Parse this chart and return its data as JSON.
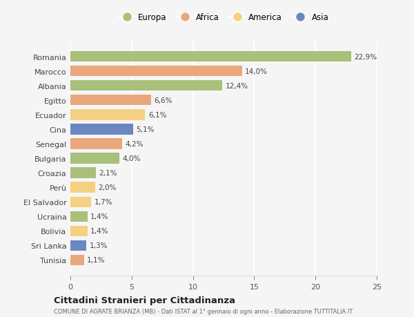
{
  "categories": [
    "Romania",
    "Marocco",
    "Albania",
    "Egitto",
    "Ecuador",
    "Cina",
    "Senegal",
    "Bulgaria",
    "Croazia",
    "Perù",
    "El Salvador",
    "Ucraina",
    "Bolivia",
    "Sri Lanka",
    "Tunisia"
  ],
  "values": [
    22.9,
    14.0,
    12.4,
    6.6,
    6.1,
    5.1,
    4.2,
    4.0,
    2.1,
    2.0,
    1.7,
    1.4,
    1.4,
    1.3,
    1.1
  ],
  "labels": [
    "22,9%",
    "14,0%",
    "12,4%",
    "6,6%",
    "6,1%",
    "5,1%",
    "4,2%",
    "4,0%",
    "2,1%",
    "2,0%",
    "1,7%",
    "1,4%",
    "1,4%",
    "1,3%",
    "1,1%"
  ],
  "continents": [
    "Europa",
    "Africa",
    "Europa",
    "Africa",
    "America",
    "Asia",
    "Africa",
    "Europa",
    "Europa",
    "America",
    "America",
    "Europa",
    "America",
    "Asia",
    "Africa"
  ],
  "continent_colors": {
    "Europa": "#a8c07a",
    "Africa": "#e8a87c",
    "America": "#f5d080",
    "Asia": "#6b87c0"
  },
  "legend_order": [
    "Europa",
    "Africa",
    "America",
    "Asia"
  ],
  "xlim": [
    0,
    25
  ],
  "xticks": [
    0,
    5,
    10,
    15,
    20,
    25
  ],
  "title": "Cittadini Stranieri per Cittadinanza",
  "subtitle": "COMUNE DI AGRATE BRIANZA (MB) - Dati ISTAT al 1° gennaio di ogni anno - Elaborazione TUTTITALIA.IT",
  "bg_color": "#f5f5f5",
  "grid_color": "#ffffff",
  "bar_height": 0.72,
  "label_fontsize": 7.5,
  "ytick_fontsize": 8.0,
  "xtick_fontsize": 8.0
}
